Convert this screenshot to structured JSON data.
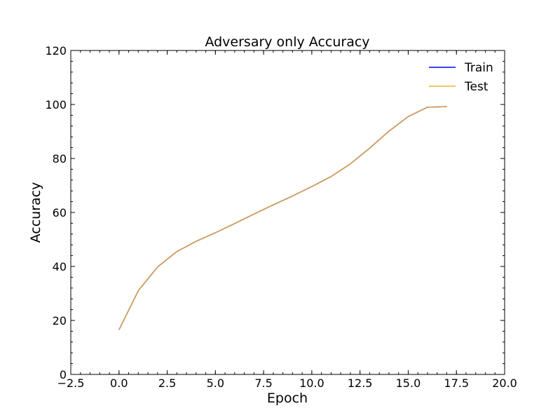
{
  "chart_data": {
    "type": "line",
    "title": "Adversary only Accuracy",
    "xlabel": "Epoch",
    "ylabel": "Accuracy",
    "xlim": [
      -2.5,
      20.0
    ],
    "ylim": [
      0,
      120
    ],
    "xticks": [
      "−2.5",
      "0.0",
      "2.5",
      "5.0",
      "7.5",
      "10.0",
      "12.5",
      "15.0",
      "17.5",
      "20.0"
    ],
    "yticks": [
      "0",
      "20",
      "40",
      "60",
      "80",
      "100",
      "120"
    ],
    "legend_position": "top-right",
    "x": [
      0,
      1,
      2,
      3,
      4,
      5,
      6,
      7,
      8,
      9,
      10,
      11,
      12,
      13,
      14,
      15,
      16,
      17
    ],
    "series": [
      {
        "name": "Train",
        "color": "#0000ff",
        "values": [
          16.5,
          31.0,
          39.8,
          45.5,
          49.3,
          52.5,
          55.9,
          59.4,
          62.8,
          66.1,
          69.6,
          73.3,
          78.0,
          83.8,
          90.1,
          95.5,
          99.0,
          99.2
        ]
      },
      {
        "name": "Test",
        "color": "#f0b030",
        "values": [
          16.5,
          31.0,
          39.8,
          45.5,
          49.3,
          52.5,
          55.9,
          59.4,
          62.8,
          66.1,
          69.6,
          73.3,
          78.0,
          83.8,
          90.1,
          95.5,
          99.0,
          99.2
        ]
      }
    ]
  }
}
